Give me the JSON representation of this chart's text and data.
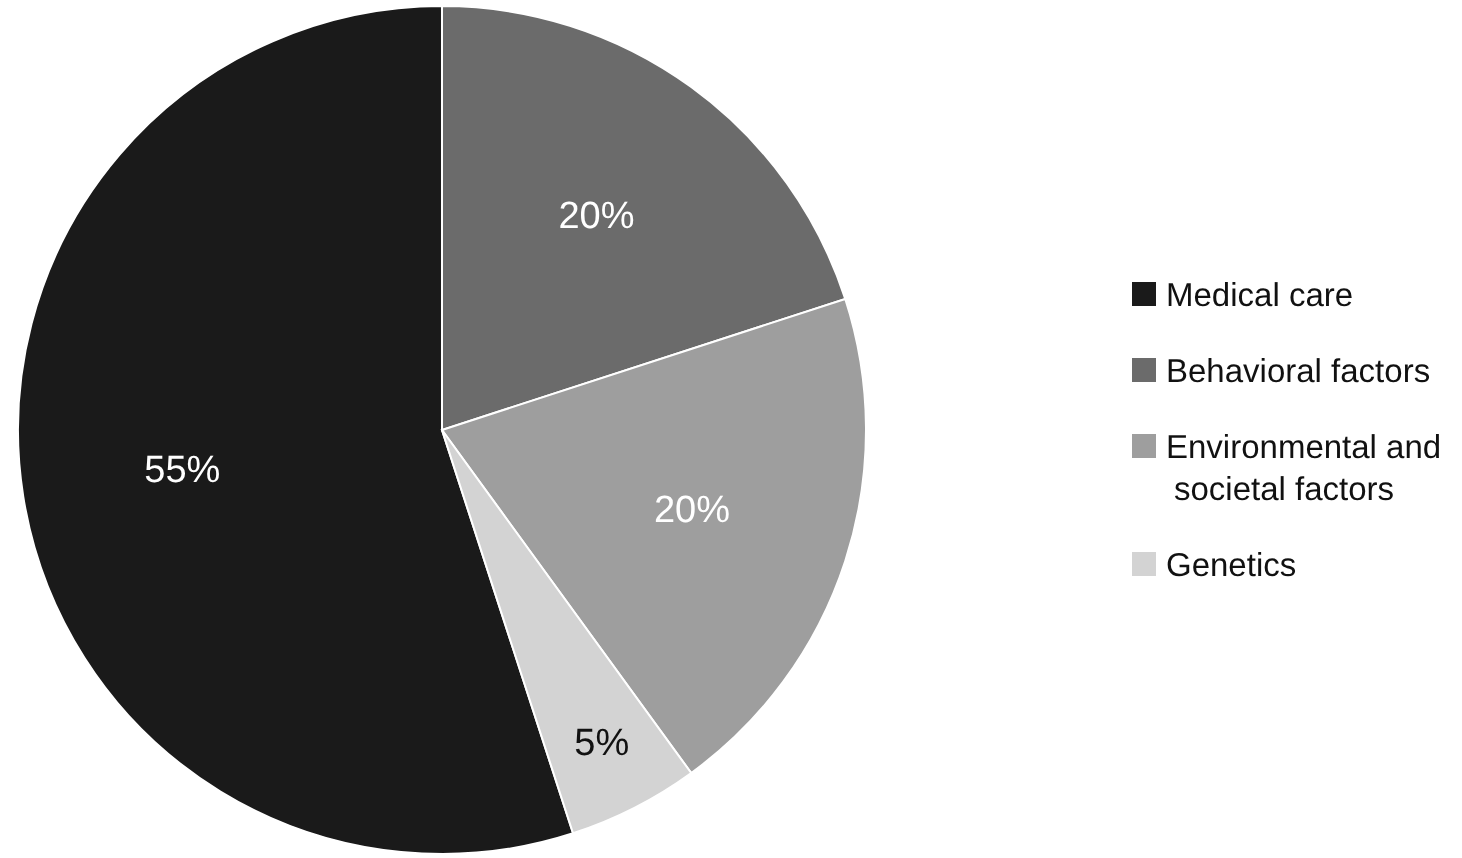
{
  "chart_data": {
    "type": "pie",
    "categories": [
      "Medical care",
      "Behavioral factors",
      "Environmental and societal factors",
      "Genetics"
    ],
    "values": [
      55,
      20,
      20,
      5
    ],
    "colors": [
      "#1a1a1a",
      "#6b6b6b",
      "#9e9e9e",
      "#d3d3d3"
    ],
    "value_labels": [
      "55%",
      "20%",
      "20%",
      "5%"
    ],
    "legend": "right"
  }
}
